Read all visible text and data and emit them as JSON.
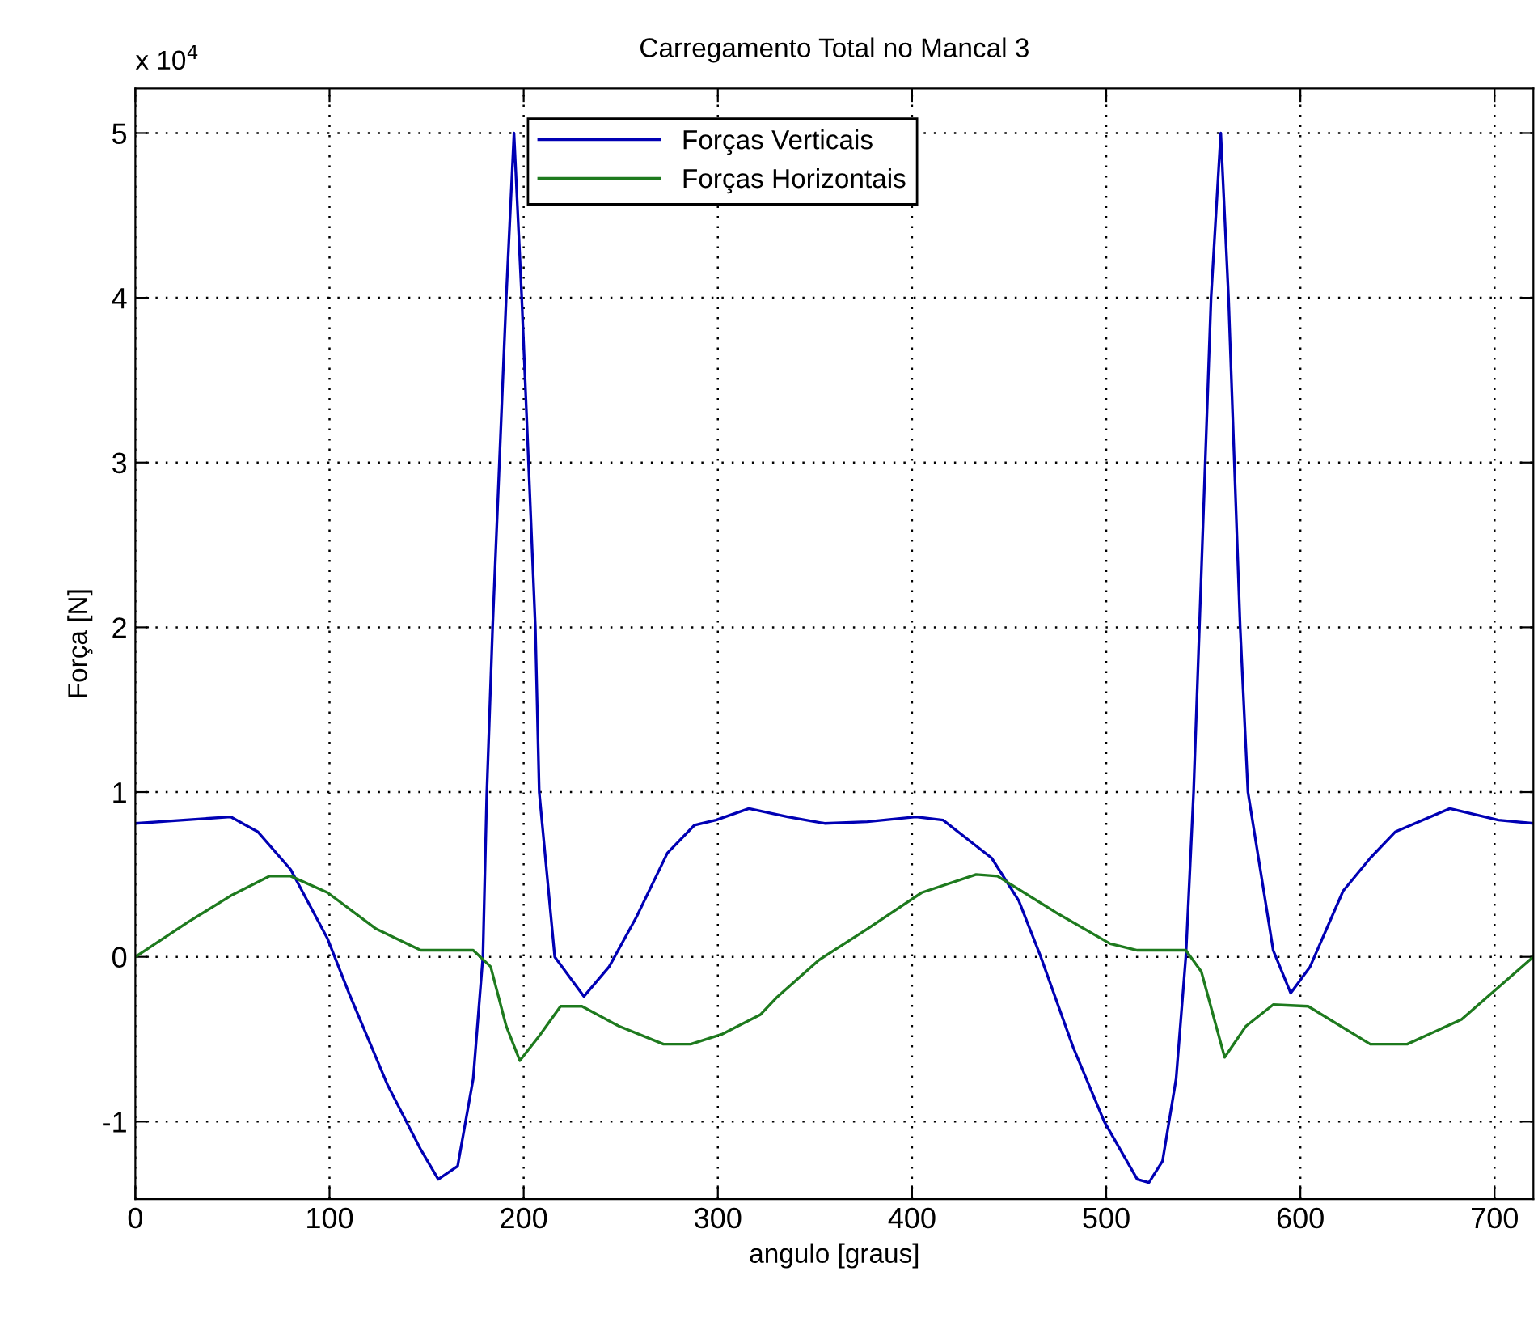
{
  "chart_data": {
    "type": "line",
    "title": "Carregamento Total no Mancal 3",
    "xlabel": "angulo [graus]",
    "ylabel": "Força [N]",
    "annotations": [
      "x 10$^{4}$"
    ],
    "xlim": [
      0,
      720
    ],
    "xticks": [
      0,
      100,
      200,
      300,
      400,
      500,
      600,
      700
    ],
    "ylim": [
      -1.47,
      5.27
    ],
    "yticks": [
      -1,
      0,
      1,
      2,
      3,
      4,
      5
    ],
    "grid": true,
    "legend": "top",
    "line_style": "solid",
    "series": [
      {
        "name": "Forças Verticais",
        "color": "#0000b4",
        "x": [
          0,
          49,
          63,
          80,
          99,
          110,
          130,
          147,
          156,
          166,
          174,
          179,
          181,
          184,
          191,
          195,
          199,
          206,
          208,
          216,
          231,
          244,
          258,
          274,
          288,
          299,
          316,
          336,
          355,
          377,
          402,
          416,
          441,
          455,
          466,
          483,
          499,
          516,
          522,
          529,
          536,
          541,
          545,
          548,
          554,
          559,
          563,
          569,
          573,
          586,
          595,
          605,
          622,
          636,
          649,
          677,
          702,
          720
        ],
        "values": [
          0.81,
          0.85,
          0.76,
          0.53,
          0.11,
          -0.22,
          -0.78,
          -1.17,
          -1.35,
          -1.27,
          -0.74,
          0,
          0.99,
          2,
          4,
          5,
          4,
          2,
          1,
          0,
          -0.24,
          -0.06,
          0.24,
          0.63,
          0.8,
          0.83,
          0.9,
          0.85,
          0.81,
          0.82,
          0.85,
          0.83,
          0.6,
          0.34,
          0.01,
          -0.55,
          -1,
          -1.35,
          -1.37,
          -1.24,
          -0.74,
          0,
          1,
          2,
          4,
          5,
          4,
          2,
          1,
          0.04,
          -0.22,
          -0.06,
          0.4,
          0.6,
          0.76,
          0.9,
          0.83,
          0.81
        ]
      },
      {
        "name": "Forças Horizontais",
        "color": "#1e7a1e",
        "x": [
          0,
          27,
          49,
          69,
          80,
          99,
          124,
          147,
          174,
          183,
          191,
          198,
          208,
          219,
          230,
          249,
          272,
          286,
          302,
          322,
          330,
          352,
          377,
          405,
          433,
          444,
          474,
          502,
          516,
          541,
          549,
          561,
          572,
          586,
          604,
          636,
          655,
          683,
          720
        ],
        "values": [
          0,
          0.21,
          0.37,
          0.49,
          0.49,
          0.39,
          0.17,
          0.04,
          0.04,
          -0.06,
          -0.42,
          -0.63,
          -0.48,
          -0.3,
          -0.3,
          -0.42,
          -0.53,
          -0.53,
          -0.47,
          -0.35,
          -0.25,
          -0.02,
          0.17,
          0.39,
          0.5,
          0.49,
          0.27,
          0.08,
          0.04,
          0.04,
          -0.09,
          -0.61,
          -0.42,
          -0.29,
          -0.3,
          -0.53,
          -0.53,
          -0.38,
          0
        ]
      }
    ]
  }
}
